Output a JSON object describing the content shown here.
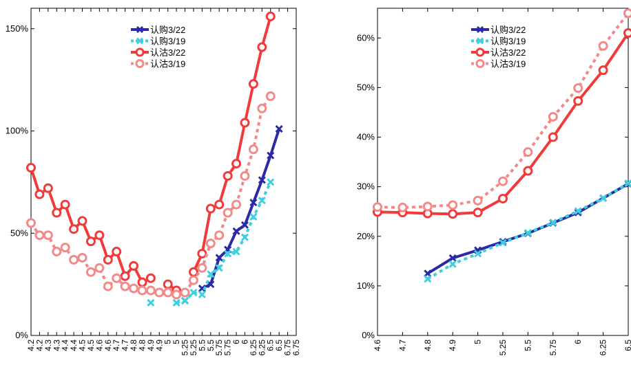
{
  "chart_data": [
    {
      "type": "line",
      "ylabel": "",
      "ylim": [
        0,
        160
      ],
      "y_ticks": [
        {
          "value": 0,
          "label": "0%"
        },
        {
          "value": 50,
          "label": "50%"
        },
        {
          "value": 100,
          "label": "100%"
        },
        {
          "value": 150,
          "label": "150%"
        }
      ],
      "x_labels": [
        "4.2",
        "4.2",
        "4.3",
        "4.3",
        "4.4",
        "4.4",
        "4.5",
        "4.5",
        "4.6",
        "4.6",
        "4.7",
        "4.7",
        "4.8",
        "4.8",
        "4.9",
        "4.9",
        "5",
        "5",
        "5.25",
        "5.25",
        "5.5",
        "5.5",
        "5.75",
        "5.75",
        "6",
        "6",
        "6.25",
        "6.25",
        "6.5",
        "6.5",
        "6.75",
        "6.75"
      ],
      "legend_position": "top-center",
      "grid": false,
      "series": [
        {
          "name": "认购3/22",
          "color": "#2a2aa6",
          "dashed": false,
          "marker": "x",
          "values": [
            null,
            null,
            null,
            null,
            null,
            null,
            null,
            null,
            null,
            null,
            null,
            null,
            null,
            null,
            null,
            null,
            null,
            null,
            17,
            null,
            23,
            25,
            38,
            42,
            51,
            54,
            65,
            76,
            88,
            101,
            null,
            null
          ]
        },
        {
          "name": "认购3/19",
          "color": "#3fcfdf",
          "dashed": true,
          "marker": "x",
          "values": [
            null,
            null,
            null,
            null,
            null,
            null,
            null,
            null,
            null,
            null,
            null,
            null,
            null,
            null,
            16,
            null,
            null,
            16,
            17,
            21,
            20,
            30,
            33,
            40,
            41,
            48,
            58,
            66,
            75,
            null,
            null,
            null
          ]
        },
        {
          "name": "认沽3/22",
          "color": "#f23a3a",
          "dashed": false,
          "marker": "o",
          "values": [
            82,
            69,
            72,
            60,
            64,
            52,
            56,
            46,
            49,
            37,
            41,
            29,
            34,
            26,
            28,
            null,
            25,
            22,
            null,
            31,
            40,
            62,
            64,
            78,
            84,
            104,
            123,
            141,
            156,
            null,
            null,
            null
          ]
        },
        {
          "name": "认沽3/19",
          "color": "#f28a8a",
          "dashed": true,
          "marker": "o",
          "values": [
            55,
            49,
            49,
            41,
            43,
            37,
            38,
            31,
            33,
            24,
            28,
            24,
            23,
            22,
            22,
            21,
            21,
            20,
            21,
            27,
            33,
            45,
            49,
            60,
            64,
            78,
            91,
            111,
            117,
            null,
            null,
            null
          ]
        }
      ]
    },
    {
      "type": "line",
      "ylabel": "",
      "ylim": [
        0,
        66
      ],
      "y_ticks": [
        {
          "value": 0,
          "label": "0%"
        },
        {
          "value": 10,
          "label": "10%"
        },
        {
          "value": 20,
          "label": "20%"
        },
        {
          "value": 30,
          "label": "30%"
        },
        {
          "value": 40,
          "label": "40%"
        },
        {
          "value": 50,
          "label": "50%"
        },
        {
          "value": 60,
          "label": "60%"
        }
      ],
      "x_labels": [
        "4.6",
        "4.7",
        "4.8",
        "4.9",
        "5",
        "5.25",
        "5.5",
        "5.75",
        "6",
        "6.25",
        "6.5"
      ],
      "legend_position": "top-center",
      "grid": false,
      "series": [
        {
          "name": "认购3/22",
          "color": "#2a2aa6",
          "dashed": false,
          "marker": "x",
          "values": [
            null,
            null,
            12.5,
            15.6,
            17.2,
            18.9,
            20.6,
            22.7,
            24.8,
            27.7,
            30.6
          ]
        },
        {
          "name": "认购3/19",
          "color": "#3fcfdf",
          "dashed": true,
          "marker": "x",
          "values": [
            null,
            null,
            11.4,
            14.4,
            16.5,
            18.7,
            20.7,
            22.8,
            25.1,
            27.7,
            30.7
          ]
        },
        {
          "name": "认沽3/22",
          "color": "#f23a3a",
          "dashed": false,
          "marker": "o",
          "values": [
            24.9,
            24.8,
            24.6,
            24.5,
            24.8,
            27.6,
            33.2,
            40.0,
            47.3,
            53.5,
            61.0
          ]
        },
        {
          "name": "认沽3/19",
          "color": "#f28a8a",
          "dashed": true,
          "marker": "o",
          "values": [
            25.9,
            25.8,
            26.0,
            26.3,
            27.2,
            31.1,
            37.0,
            44.1,
            49.9,
            58.4,
            65.0
          ]
        }
      ]
    }
  ]
}
